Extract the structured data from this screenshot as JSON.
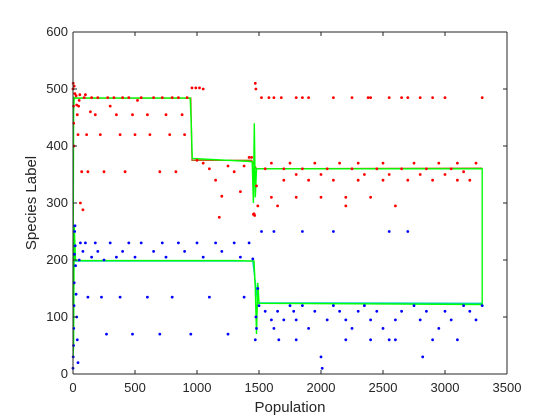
{
  "chart_data": {
    "type": "scatter",
    "title": "",
    "xlabel": "Population",
    "ylabel": "Species Label",
    "xlim": [
      0,
      3500
    ],
    "ylim": [
      0,
      600
    ],
    "xticks": [
      0,
      500,
      1000,
      1500,
      2000,
      2500,
      3000,
      3500
    ],
    "yticks": [
      0,
      100,
      200,
      300,
      400,
      500,
      600
    ],
    "grid": false,
    "legend": "none",
    "colors": {
      "red_points": "#ff0000",
      "blue_points": "#0000ff",
      "green_line": "#00ff00",
      "red_mean_line": "#b5651d",
      "blue_mean_line": "#00c8c8",
      "axis": "#262626"
    },
    "series": [
      {
        "kind": "line",
        "color_key": "red_mean_line",
        "points": [
          [
            0,
            480
          ],
          [
            10,
            484
          ],
          [
            950,
            484
          ],
          [
            960,
            375
          ],
          [
            1440,
            375
          ],
          [
            1480,
            360
          ],
          [
            3300,
            361
          ]
        ]
      },
      {
        "kind": "line",
        "color_key": "blue_mean_line",
        "points": [
          [
            0,
            195
          ],
          [
            10,
            198
          ],
          [
            1450,
            198
          ],
          [
            1490,
            125
          ],
          [
            3300,
            124
          ]
        ]
      },
      {
        "kind": "line",
        "color_key": "green_line",
        "points": [
          [
            0,
            120
          ],
          [
            5,
            460
          ],
          [
            10,
            485
          ],
          [
            20,
            484
          ],
          [
            900,
            484
          ],
          [
            945,
            484
          ],
          [
            955,
            430
          ],
          [
            962,
            378
          ],
          [
            1420,
            373
          ],
          [
            1445,
            372
          ],
          [
            1455,
            300
          ],
          [
            1462,
            440
          ],
          [
            1470,
            310
          ],
          [
            1480,
            360
          ],
          [
            3300,
            360
          ],
          [
            3300,
            122
          ],
          [
            1500,
            124
          ],
          [
            1490,
            160
          ],
          [
            1480,
            70
          ],
          [
            1470,
            150
          ],
          [
            1460,
            198
          ],
          [
            1300,
            199
          ],
          [
            50,
            199
          ],
          [
            20,
            200
          ],
          [
            10,
            260
          ],
          [
            5,
            50
          ],
          [
            0,
            30
          ]
        ]
      },
      {
        "kind": "scatter",
        "color_key": "red_points",
        "points": [
          [
            0,
            500
          ],
          [
            2,
            510
          ],
          [
            4,
            470
          ],
          [
            6,
            440
          ],
          [
            8,
            400
          ],
          [
            10,
            505
          ],
          [
            15,
            492
          ],
          [
            25,
            488
          ],
          [
            30,
            472
          ],
          [
            35,
            455
          ],
          [
            40,
            420
          ],
          [
            45,
            470
          ],
          [
            50,
            480
          ],
          [
            55,
            490
          ],
          [
            60,
            300
          ],
          [
            70,
            355
          ],
          [
            80,
            288
          ],
          [
            90,
            485
          ],
          [
            100,
            490
          ],
          [
            110,
            420
          ],
          [
            120,
            355
          ],
          [
            140,
            460
          ],
          [
            150,
            485
          ],
          [
            180,
            455
          ],
          [
            200,
            485
          ],
          [
            220,
            420
          ],
          [
            250,
            355
          ],
          [
            280,
            485
          ],
          [
            300,
            470
          ],
          [
            330,
            485
          ],
          [
            350,
            455
          ],
          [
            380,
            420
          ],
          [
            400,
            485
          ],
          [
            420,
            355
          ],
          [
            450,
            485
          ],
          [
            480,
            455
          ],
          [
            500,
            420
          ],
          [
            520,
            480
          ],
          [
            550,
            485
          ],
          [
            600,
            455
          ],
          [
            620,
            420
          ],
          [
            650,
            485
          ],
          [
            700,
            355
          ],
          [
            720,
            485
          ],
          [
            750,
            455
          ],
          [
            780,
            420
          ],
          [
            800,
            485
          ],
          [
            830,
            355
          ],
          [
            850,
            485
          ],
          [
            880,
            455
          ],
          [
            900,
            420
          ],
          [
            920,
            485
          ],
          [
            960,
            502
          ],
          [
            990,
            502
          ],
          [
            1020,
            502
          ],
          [
            1050,
            500
          ],
          [
            1000,
            375
          ],
          [
            1050,
            370
          ],
          [
            1100,
            360
          ],
          [
            1150,
            340
          ],
          [
            1200,
            312
          ],
          [
            1180,
            275
          ],
          [
            1250,
            365
          ],
          [
            1300,
            355
          ],
          [
            1350,
            320
          ],
          [
            1380,
            365
          ],
          [
            1420,
            380
          ],
          [
            1440,
            380
          ],
          [
            1455,
            280
          ],
          [
            1460,
            281
          ],
          [
            1465,
            278
          ],
          [
            1470,
            510
          ],
          [
            1475,
            500
          ],
          [
            1480,
            330
          ],
          [
            1490,
            295
          ],
          [
            1520,
            485
          ],
          [
            1550,
            360
          ],
          [
            1600,
            370
          ],
          [
            1650,
            295
          ],
          [
            1700,
            360
          ],
          [
            1750,
            370
          ],
          [
            1800,
            350
          ],
          [
            1850,
            360
          ],
          [
            1900,
            485
          ],
          [
            1950,
            370
          ],
          [
            2000,
            350
          ],
          [
            2050,
            360
          ],
          [
            2100,
            485
          ],
          [
            2150,
            370
          ],
          [
            2200,
            295
          ],
          [
            2250,
            360
          ],
          [
            2300,
            370
          ],
          [
            2350,
            350
          ],
          [
            2400,
            485
          ],
          [
            2450,
            360
          ],
          [
            2500,
            370
          ],
          [
            2550,
            350
          ],
          [
            2600,
            295
          ],
          [
            2650,
            360
          ],
          [
            2700,
            485
          ],
          [
            2750,
            370
          ],
          [
            2800,
            350
          ],
          [
            2850,
            360
          ],
          [
            2900,
            485
          ],
          [
            2950,
            370
          ],
          [
            3000,
            350
          ],
          [
            3050,
            360
          ],
          [
            3100,
            370
          ],
          [
            3150,
            355
          ],
          [
            3200,
            340
          ],
          [
            3250,
            370
          ],
          [
            3300,
            485
          ],
          [
            1580,
            485
          ],
          [
            1620,
            485
          ],
          [
            1680,
            485
          ],
          [
            1800,
            485
          ],
          [
            1850,
            485
          ],
          [
            2250,
            485
          ],
          [
            2380,
            485
          ],
          [
            2550,
            485
          ],
          [
            2650,
            485
          ],
          [
            2800,
            485
          ],
          [
            3000,
            485
          ],
          [
            1700,
            340
          ],
          [
            1900,
            340
          ],
          [
            2100,
            340
          ],
          [
            2300,
            340
          ],
          [
            2500,
            340
          ],
          [
            2700,
            340
          ],
          [
            2900,
            340
          ],
          [
            3100,
            340
          ],
          [
            1600,
            310
          ],
          [
            1800,
            310
          ],
          [
            2000,
            310
          ],
          [
            2200,
            310
          ],
          [
            2400,
            310
          ]
        ]
      },
      {
        "kind": "scatter",
        "color_key": "blue_points",
        "points": [
          [
            0,
            10
          ],
          [
            2,
            30
          ],
          [
            4,
            50
          ],
          [
            6,
            80
          ],
          [
            8,
            120
          ],
          [
            10,
            160
          ],
          [
            12,
            210
          ],
          [
            14,
            250
          ],
          [
            16,
            260
          ],
          [
            18,
            225
          ],
          [
            20,
            190
          ],
          [
            25,
            140
          ],
          [
            30,
            100
          ],
          [
            35,
            60
          ],
          [
            40,
            20
          ],
          [
            50,
            200
          ],
          [
            60,
            230
          ],
          [
            80,
            215
          ],
          [
            100,
            230
          ],
          [
            120,
            135
          ],
          [
            150,
            205
          ],
          [
            180,
            230
          ],
          [
            200,
            215
          ],
          [
            230,
            135
          ],
          [
            250,
            200
          ],
          [
            270,
            70
          ],
          [
            300,
            230
          ],
          [
            350,
            205
          ],
          [
            380,
            135
          ],
          [
            400,
            215
          ],
          [
            450,
            230
          ],
          [
            480,
            70
          ],
          [
            500,
            205
          ],
          [
            550,
            230
          ],
          [
            600,
            135
          ],
          [
            650,
            215
          ],
          [
            700,
            70
          ],
          [
            720,
            230
          ],
          [
            750,
            205
          ],
          [
            800,
            135
          ],
          [
            850,
            230
          ],
          [
            900,
            215
          ],
          [
            950,
            70
          ],
          [
            1000,
            230
          ],
          [
            1050,
            205
          ],
          [
            1100,
            135
          ],
          [
            1150,
            230
          ],
          [
            1200,
            215
          ],
          [
            1250,
            70
          ],
          [
            1300,
            230
          ],
          [
            1350,
            205
          ],
          [
            1380,
            135
          ],
          [
            1420,
            230
          ],
          [
            1450,
            202
          ],
          [
            1470,
            60
          ],
          [
            1475,
            100
          ],
          [
            1480,
            80
          ],
          [
            1490,
            150
          ],
          [
            1500,
            120
          ],
          [
            1520,
            250
          ],
          [
            1550,
            110
          ],
          [
            1600,
            95
          ],
          [
            1620,
            80
          ],
          [
            1650,
            110
          ],
          [
            1700,
            95
          ],
          [
            1750,
            120
          ],
          [
            1780,
            110
          ],
          [
            1800,
            95
          ],
          [
            1850,
            120
          ],
          [
            1900,
            80
          ],
          [
            1950,
            110
          ],
          [
            2000,
            30
          ],
          [
            2010,
            10
          ],
          [
            2050,
            95
          ],
          [
            2100,
            120
          ],
          [
            2150,
            110
          ],
          [
            2200,
            95
          ],
          [
            2250,
            80
          ],
          [
            2300,
            110
          ],
          [
            2350,
            120
          ],
          [
            2400,
            95
          ],
          [
            2450,
            110
          ],
          [
            2500,
            80
          ],
          [
            2550,
            60
          ],
          [
            2600,
            95
          ],
          [
            2650,
            110
          ],
          [
            2700,
            250
          ],
          [
            2750,
            120
          ],
          [
            2800,
            95
          ],
          [
            2850,
            110
          ],
          [
            2900,
            60
          ],
          [
            2950,
            80
          ],
          [
            3000,
            110
          ],
          [
            3050,
            95
          ],
          [
            3100,
            60
          ],
          [
            3150,
            120
          ],
          [
            3200,
            110
          ],
          [
            3250,
            95
          ],
          [
            3300,
            120
          ],
          [
            1660,
            60
          ],
          [
            1800,
            60
          ],
          [
            2200,
            60
          ],
          [
            2400,
            60
          ],
          [
            2600,
            60
          ],
          [
            1620,
            250
          ],
          [
            1850,
            250
          ],
          [
            2100,
            250
          ],
          [
            2550,
            250
          ],
          [
            2820,
            30
          ]
        ]
      }
    ]
  }
}
